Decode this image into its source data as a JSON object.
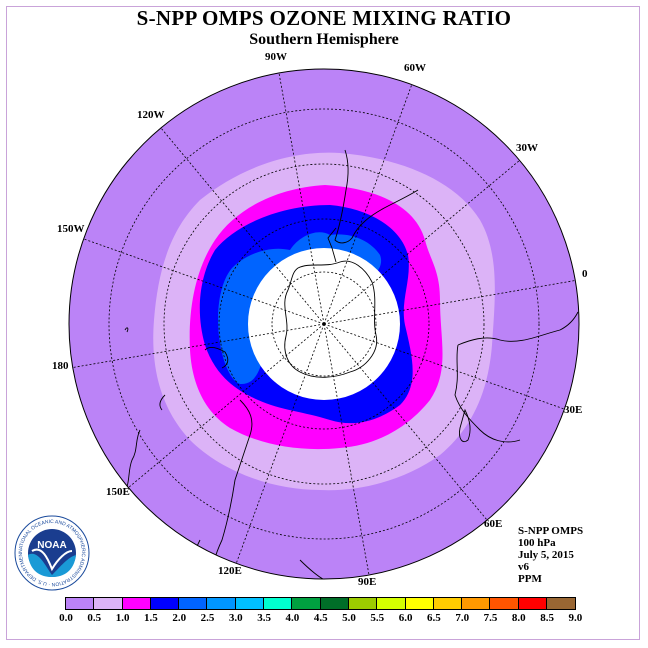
{
  "title": "S-NPP OMPS OZONE MIXING RATIO",
  "subtitle": "Southern Hemisphere",
  "longitude_labels": [
    {
      "id": "lon-90w",
      "text": "90W"
    },
    {
      "id": "lon-60w",
      "text": "60W"
    },
    {
      "id": "lon-30w",
      "text": "30W"
    },
    {
      "id": "lon-0",
      "text": "0"
    },
    {
      "id": "lon-30e",
      "text": "30E"
    },
    {
      "id": "lon-60e",
      "text": "60E"
    },
    {
      "id": "lon-90e",
      "text": "90E"
    },
    {
      "id": "lon-120e",
      "text": "120E"
    },
    {
      "id": "lon-150e",
      "text": "150E"
    },
    {
      "id": "lon-180",
      "text": "180"
    },
    {
      "id": "lon-150w",
      "text": "150W"
    },
    {
      "id": "lon-120w",
      "text": "120W"
    }
  ],
  "info_lines": [
    "S-NPP OMPS",
    "100 hPa",
    "July 5, 2015",
    "v6",
    "PPM"
  ],
  "logo": {
    "text": "NOAA",
    "icon": "noaa-logo-icon",
    "ring_text": "NATIONAL OCEANIC AND ATMOSPHERIC ADMINISTRATION · U.S. DEPARTMENT OF COMMERCE"
  },
  "colorbar": {
    "colors": [
      "#bb83f7",
      "#dcb3f7",
      "#ff00ff",
      "#0000ff",
      "#0064ff",
      "#0096ff",
      "#00c0ff",
      "#00ffd0",
      "#00a040",
      "#006e28",
      "#9ccc00",
      "#d4ff00",
      "#ffff00",
      "#ffcc00",
      "#ff9900",
      "#ff5500",
      "#ff0000",
      "#996633"
    ],
    "tick_labels": [
      "0.0",
      "0.5",
      "1.0",
      "1.5",
      "2.0",
      "2.5",
      "3.0",
      "3.5",
      "4.0",
      "4.5",
      "5.0",
      "5.5",
      "6.0",
      "6.5",
      "7.0",
      "7.5",
      "8.0",
      "8.5",
      "9.0"
    ]
  },
  "map_colors": {
    "background_level": "#bb83f7",
    "level_0_5": "#dcb3f7",
    "level_1_0": "#ff00ff",
    "level_1_5": "#0000ff",
    "level_2_0": "#0064ff",
    "polar_missing": "#ffffff"
  }
}
